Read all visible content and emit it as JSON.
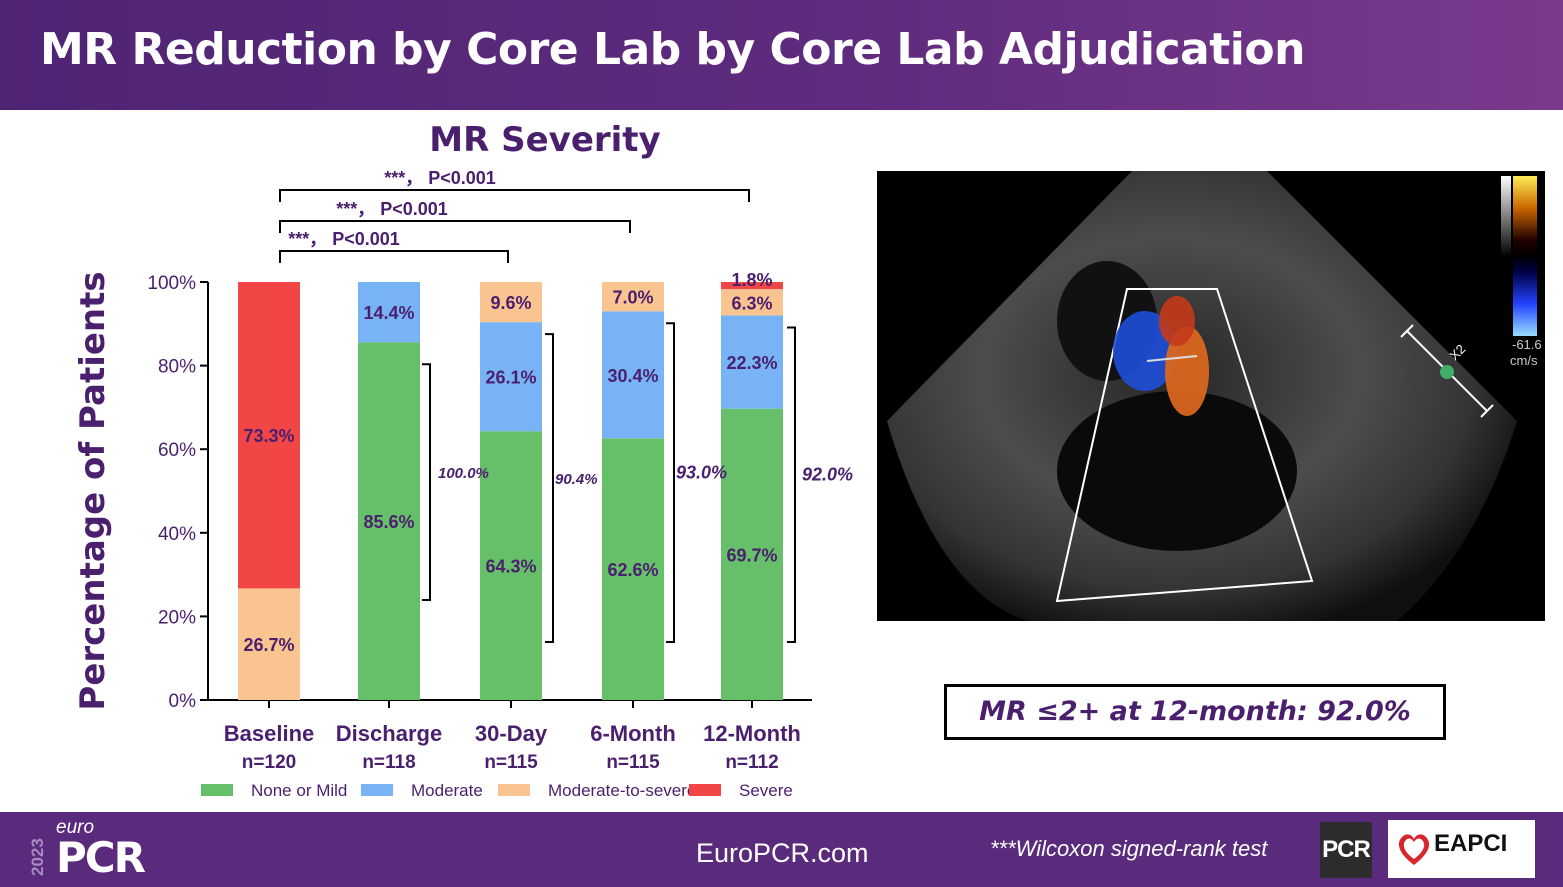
{
  "slide": {
    "title": "MR Reduction by Core Lab by Core Lab Adjudication",
    "summary": "MR ≤2+ at 12-month: 92.0%",
    "footer_url": "EuroPCR.com",
    "footnote": "***Wilcoxon signed-rank test",
    "logo_year": "2023",
    "logo_euro": "euro",
    "logo_pcr": "PCR",
    "badge_pcr": "PCR",
    "badge_eapci": "EAPCI"
  },
  "chart_data": {
    "type": "bar",
    "stacked": true,
    "title": "MR Severity",
    "ylabel": "Percentage of Patients",
    "xlabel": "",
    "ylim": [
      0,
      100
    ],
    "yticks": [
      "0%",
      "20%",
      "40%",
      "60%",
      "80%",
      "100%"
    ],
    "categories": [
      "Baseline",
      "Discharge",
      "30-Day",
      "6-Month",
      "12-Month"
    ],
    "n_labels": [
      "n=120",
      "n=118",
      "n=115",
      "n=115",
      "n=112"
    ],
    "series": [
      {
        "name": "None or Mild",
        "color": "#66c06a",
        "values": [
          0,
          85.6,
          64.3,
          62.6,
          69.7
        ]
      },
      {
        "name": "Moderate",
        "color": "#78b4f5",
        "values": [
          0,
          14.4,
          26.1,
          30.4,
          22.3
        ]
      },
      {
        "name": "Moderate-to-severe",
        "color": "#f9c490",
        "values": [
          26.7,
          0,
          9.6,
          7.0,
          6.3
        ]
      },
      {
        "name": "Severe",
        "color": "#f24646",
        "values": [
          73.3,
          0,
          0,
          0,
          1.8
        ]
      }
    ],
    "bar_labels": [
      [
        "",
        "85.6%",
        "64.3%",
        "62.6%",
        "69.7%"
      ],
      [
        "",
        "14.4%",
        "26.1%",
        "30.4%",
        "22.3%"
      ],
      [
        "26.7%",
        "",
        "9.6%",
        "7.0%",
        "6.3%"
      ],
      [
        "73.3%",
        "",
        "",
        "",
        "1.8%"
      ]
    ],
    "bracket_labels": [
      "100.0%",
      "90.4%",
      "93.0%",
      "92.0%"
    ],
    "bracket_ranges": [
      [
        0,
        85.6
      ],
      [
        0,
        90.4
      ],
      [
        0,
        93.0
      ],
      [
        0,
        92.0
      ]
    ],
    "comparisons": [
      {
        "from": 0,
        "to": 2,
        "label": "***， P<0.001"
      },
      {
        "from": 0,
        "to": 3,
        "label": "***， P<0.001"
      },
      {
        "from": 0,
        "to": 4,
        "label": "***， P<0.001"
      }
    ],
    "legend_position": "bottom",
    "grid": false
  },
  "echo": {
    "scale_value": "-61.6",
    "scale_unit": "cm/s",
    "caliper_label": "X2"
  }
}
